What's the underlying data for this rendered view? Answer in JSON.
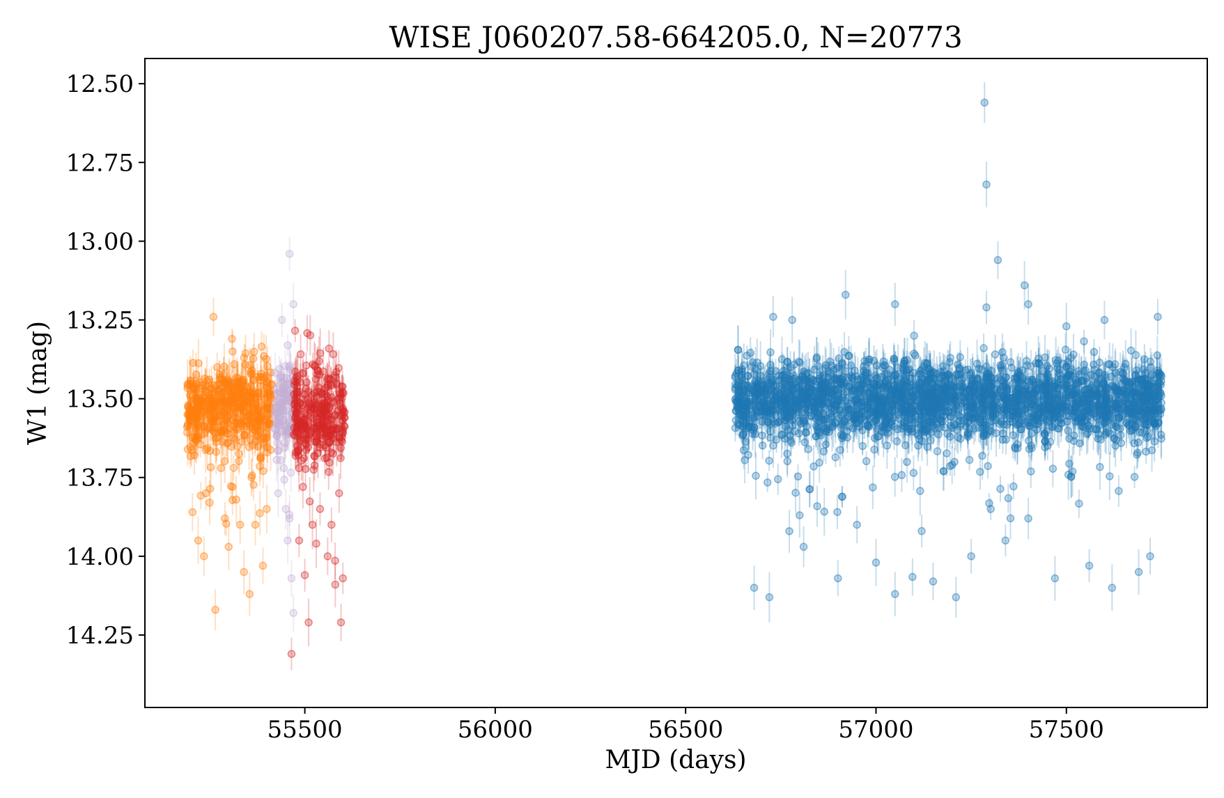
{
  "chart_data": {
    "type": "scatter",
    "title": "WISE J060207.58-664205.0, N=20773",
    "xlabel": "MJD (days)",
    "ylabel": "W1 (mag)",
    "xlim": [
      55080,
      57870
    ],
    "ylim": [
      14.48,
      12.42
    ],
    "y_inverted": true,
    "xticks": [
      55500,
      56000,
      56500,
      57000,
      57500
    ],
    "xtick_labels": [
      "55500",
      "56000",
      "56500",
      "57000",
      "57500"
    ],
    "yticks": [
      12.5,
      12.75,
      13.0,
      13.25,
      13.5,
      13.75,
      14.0,
      14.25
    ],
    "ytick_labels": [
      "12.50",
      "12.75",
      "13.00",
      "13.25",
      "13.50",
      "13.75",
      "14.00",
      "14.25"
    ],
    "grid": false,
    "legend": "none",
    "errorbars": true,
    "marker": "circle, semi-transparent",
    "series": [
      {
        "color": "#ff7f0e",
        "x_range": [
          55190,
          55415
        ],
        "y_center": 13.52,
        "y_spread": 0.07,
        "outliers": [
          [
            55260,
            13.24
          ],
          [
            55265,
            14.17
          ],
          [
            55205,
            13.86
          ],
          [
            55220,
            13.95
          ],
          [
            55235,
            14.0
          ],
          [
            55250,
            13.83
          ],
          [
            55290,
            13.88
          ],
          [
            55300,
            13.97
          ],
          [
            55320,
            13.82
          ],
          [
            55340,
            14.05
          ],
          [
            55355,
            14.12
          ],
          [
            55370,
            13.9
          ],
          [
            55390,
            14.03
          ],
          [
            55400,
            13.85
          ],
          [
            55280,
            13.72
          ],
          [
            55310,
            13.78
          ],
          [
            55330,
            13.9
          ],
          [
            55360,
            13.75
          ],
          [
            55210,
            13.68
          ],
          [
            55240,
            13.8
          ]
        ]
      },
      {
        "color": "#c5b0d5",
        "x_range": [
          55420,
          55470
        ],
        "y_center": 13.53,
        "y_spread": 0.07,
        "outliers": [
          [
            55460,
            13.04
          ],
          [
            55470,
            13.2
          ],
          [
            55440,
            13.25
          ],
          [
            55465,
            14.07
          ],
          [
            55470,
            14.18
          ],
          [
            55450,
            13.85
          ],
          [
            55455,
            13.95
          ],
          [
            55430,
            13.8
          ],
          [
            55445,
            13.72
          ],
          [
            55460,
            13.88
          ]
        ]
      },
      {
        "color": "#d62728",
        "x_range": [
          55470,
          55605
        ],
        "y_center": 13.55,
        "y_spread": 0.08,
        "outliers": [
          [
            55465,
            14.31
          ],
          [
            55510,
            14.21
          ],
          [
            55595,
            14.21
          ],
          [
            55500,
            14.06
          ],
          [
            55580,
            14.09
          ],
          [
            55485,
            13.95
          ],
          [
            55520,
            13.9
          ],
          [
            55540,
            13.85
          ],
          [
            55560,
            14.0
          ],
          [
            55590,
            13.8
          ],
          [
            55495,
            13.78
          ],
          [
            55530,
            13.96
          ],
          [
            55570,
            13.9
          ],
          [
            55600,
            14.07
          ]
        ]
      },
      {
        "color": "#1f77b4",
        "x_range": [
          56630,
          57750
        ],
        "y_center": 13.5,
        "y_spread": 0.06,
        "outliers": [
          [
            57285,
            12.56
          ],
          [
            57290,
            12.82
          ],
          [
            57320,
            13.06
          ],
          [
            56920,
            13.17
          ],
          [
            57390,
            13.14
          ],
          [
            57290,
            13.21
          ],
          [
            57050,
            13.2
          ],
          [
            57400,
            13.2
          ],
          [
            57100,
            13.3
          ],
          [
            57500,
            13.27
          ],
          [
            57600,
            13.25
          ],
          [
            57740,
            13.24
          ],
          [
            56730,
            13.24
          ],
          [
            56780,
            13.25
          ],
          [
            56680,
            14.1
          ],
          [
            56720,
            14.13
          ],
          [
            57050,
            14.12
          ],
          [
            57210,
            14.13
          ],
          [
            57620,
            14.1
          ],
          [
            57690,
            14.05
          ],
          [
            56900,
            14.07
          ],
          [
            57150,
            14.08
          ],
          [
            57470,
            14.07
          ],
          [
            57250,
            14.0
          ],
          [
            57340,
            13.95
          ],
          [
            56810,
            13.97
          ],
          [
            57000,
            14.02
          ],
          [
            57560,
            14.03
          ],
          [
            57720,
            14.0
          ],
          [
            56950,
            13.9
          ],
          [
            57120,
            13.92
          ],
          [
            57400,
            13.88
          ]
        ]
      }
    ]
  }
}
